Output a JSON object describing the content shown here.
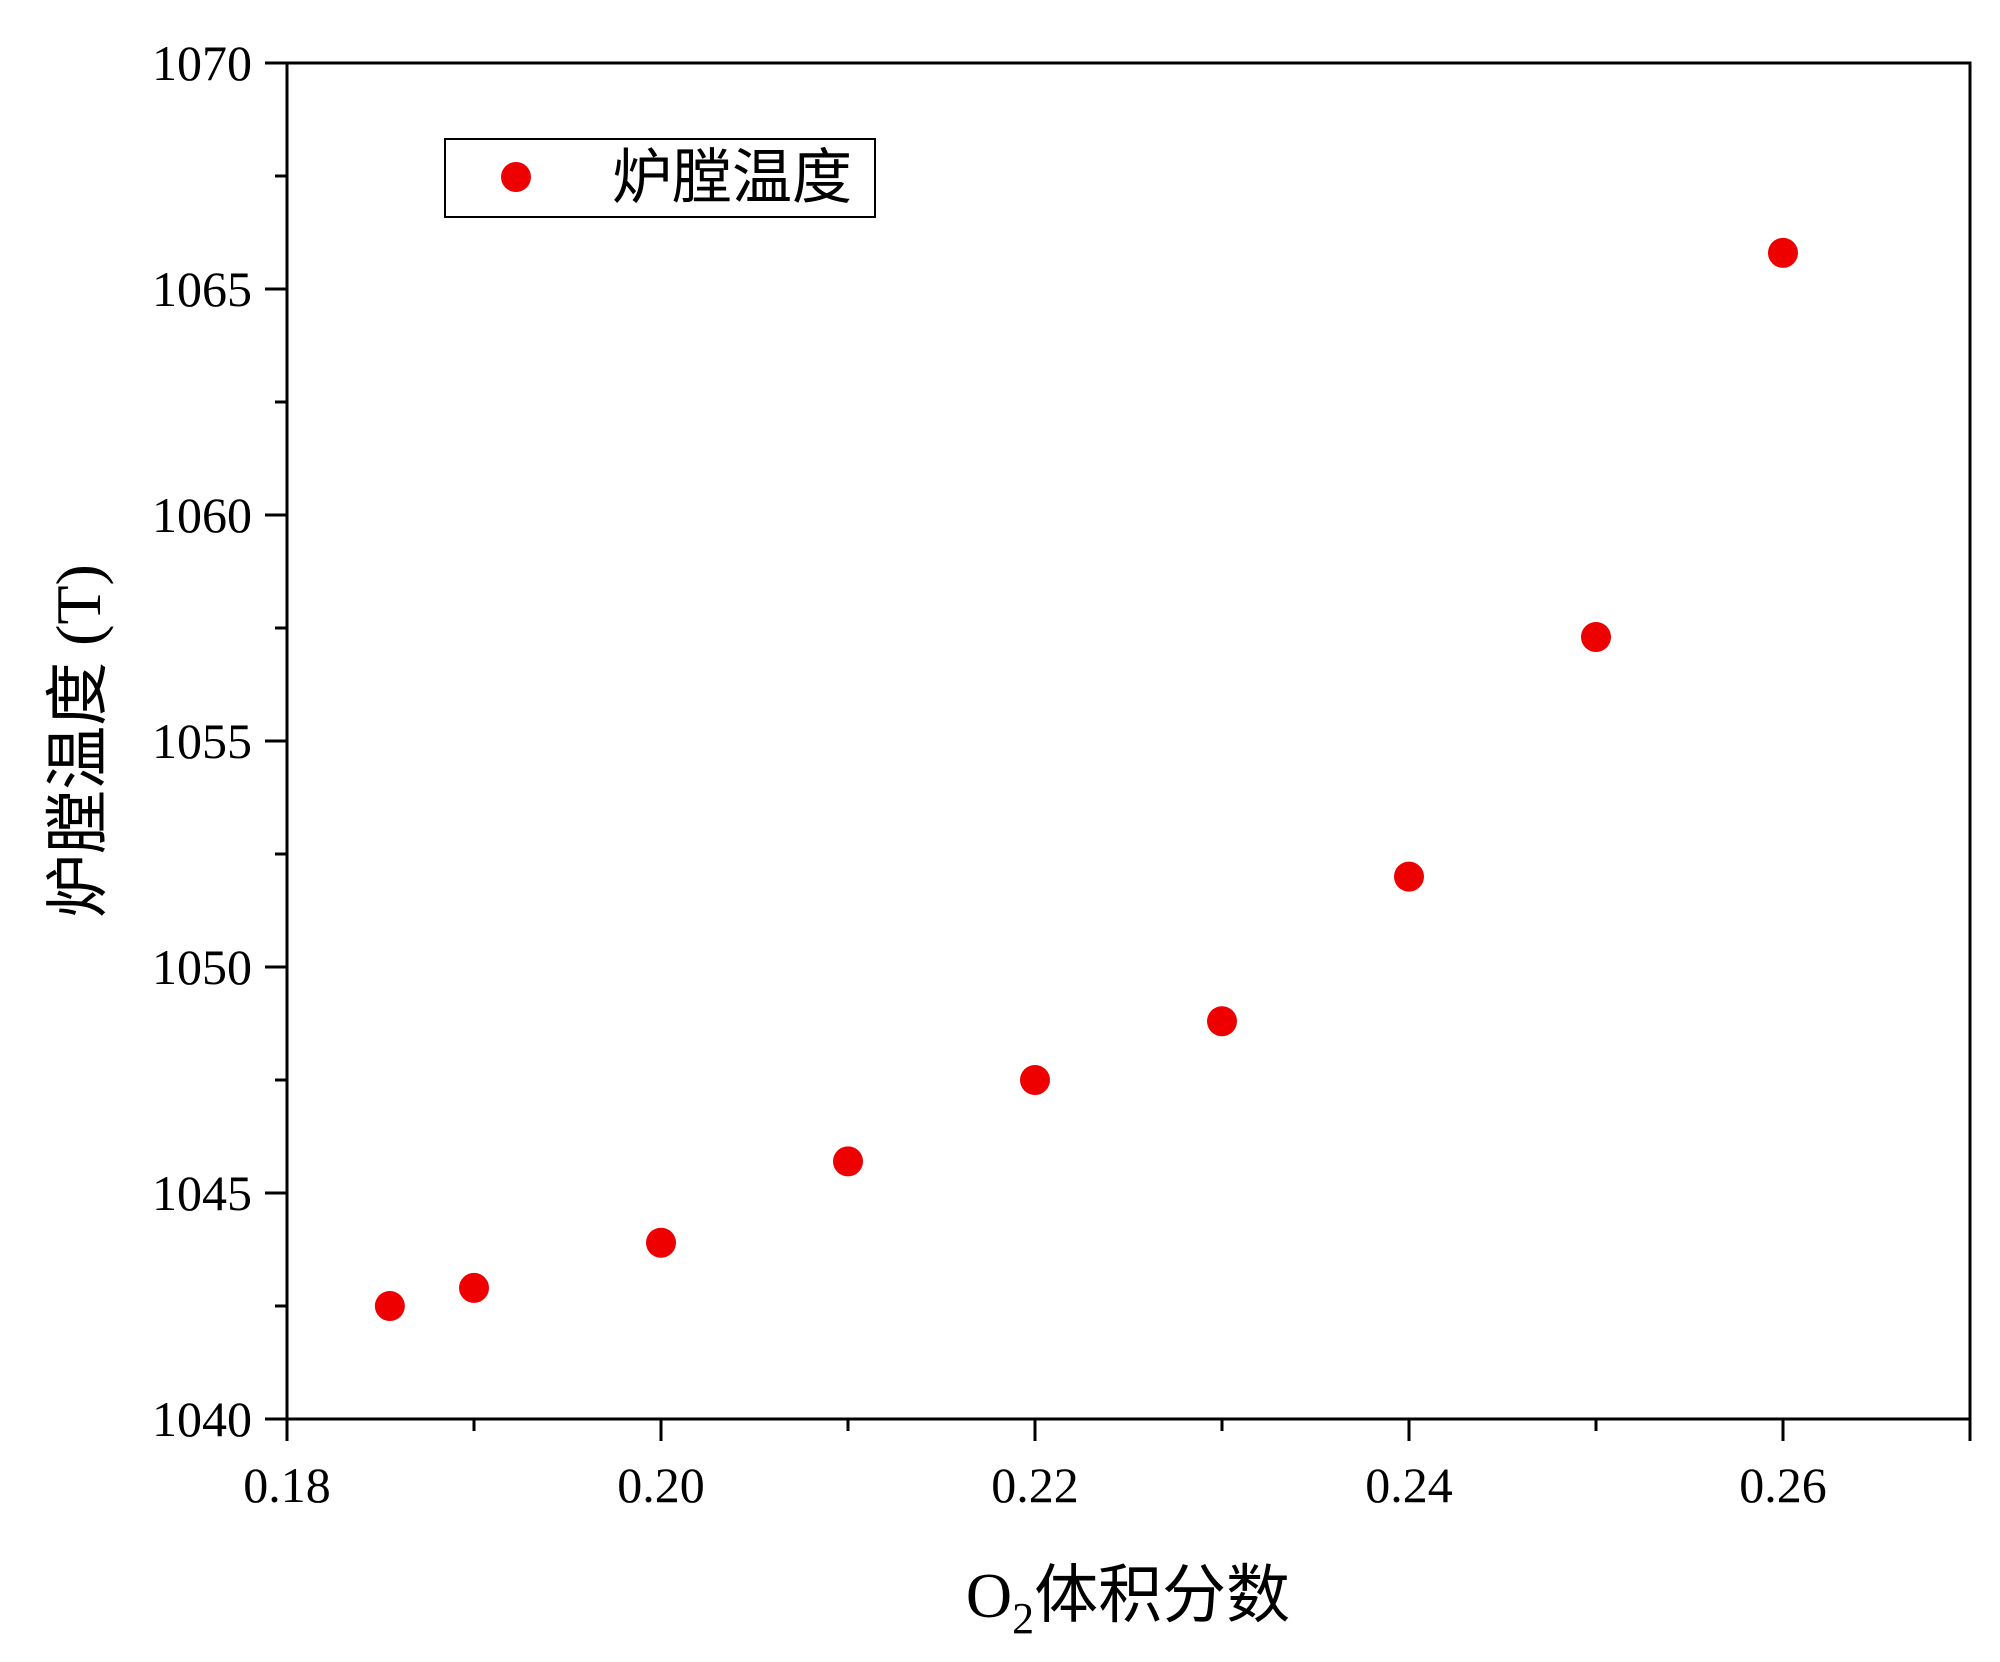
{
  "chart_data": {
    "type": "scatter",
    "xlabel_main": "O",
    "xlabel_sub": "2",
    "xlabel_rest": "体积分数",
    "ylabel": "炉膛温度 (T)",
    "xlim": [
      0.18,
      0.27
    ],
    "ylim": [
      1040,
      1070
    ],
    "xticks": [
      0.18,
      0.2,
      0.22,
      0.24,
      0.26
    ],
    "xtick_labels": [
      "0.18",
      "0.20",
      "0.22",
      "0.24",
      "0.26"
    ],
    "yticks": [
      1040,
      1045,
      1050,
      1055,
      1060,
      1065,
      1070
    ],
    "ytick_labels": [
      "1040",
      "1045",
      "1050",
      "1055",
      "1060",
      "1065",
      "1070"
    ],
    "grid": false,
    "legend_position": "top-left",
    "series": [
      {
        "name": "炉膛温度",
        "color": "#ee0000",
        "marker": "circle",
        "x": [
          0.1855,
          0.19,
          0.2,
          0.21,
          0.22,
          0.23,
          0.24,
          0.25,
          0.26
        ],
        "y": [
          1042.5,
          1042.9,
          1043.9,
          1045.7,
          1047.5,
          1048.8,
          1052.0,
          1057.3,
          1065.8
        ]
      }
    ]
  }
}
